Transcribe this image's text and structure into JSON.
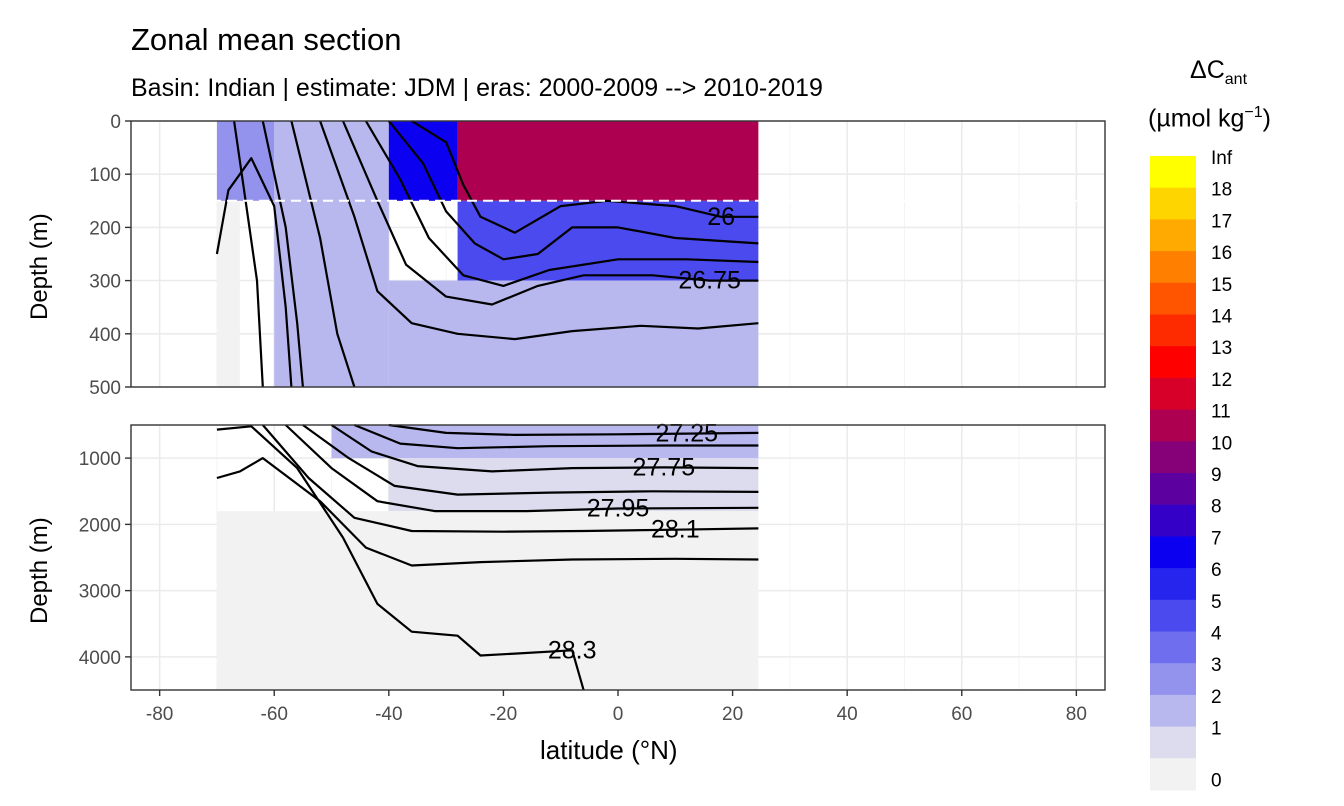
{
  "title": "Zonal mean section",
  "subtitle": "Basin: Indian | estimate: JDM  | eras: 2000-2009 --> 2010-2019",
  "chart_data": {
    "type": "heatmap",
    "subtype": "filled contour section with isopycnal contour lines",
    "xlabel": "latitude (°N)",
    "ylabel": "Depth (m)",
    "xlim": [
      -85,
      85
    ],
    "x_ticks": [
      "-80",
      "-60",
      "-40",
      "-20",
      "0",
      "20",
      "40",
      "60",
      "80"
    ],
    "panels": [
      {
        "name": "upper",
        "ylim": [
          0,
          500
        ],
        "y_reversed": true,
        "y_ticks": [
          "0",
          "100",
          "200",
          "300",
          "400",
          "500"
        ],
        "reference_line_depth": 150
      },
      {
        "name": "lower",
        "ylim": [
          500,
          4500
        ],
        "y_reversed": true,
        "y_ticks": [
          "1000",
          "2000",
          "3000",
          "4000"
        ]
      }
    ],
    "data_extent_lat": [
      -70,
      24.5
    ],
    "legend": {
      "title_main": "ΔC",
      "title_sub": "ant",
      "title_unit": "(µmol kg",
      "title_unit_sup": "−1",
      "title_unit_close": ")",
      "labels": [
        "Inf",
        "18",
        "17",
        "16",
        "15",
        "14",
        "13",
        "12",
        "11",
        "10",
        "9",
        "8",
        "7",
        "6",
        "5",
        "4",
        "3",
        "2",
        "1",
        "0"
      ],
      "colors": [
        "#FFFF00",
        "#FFD500",
        "#FFAA00",
        "#FF8000",
        "#FF5500",
        "#FF2B00",
        "#FF0000",
        "#D70028",
        "#AE0050",
        "#860078",
        "#5D00A0",
        "#3400C8",
        "#0C00F0",
        "#2525EE",
        "#4A4AEE",
        "#6E6EEE",
        "#9393EE",
        "#B8B8EE",
        "#DCDCEE",
        "#F2F2F2"
      ]
    },
    "contour_labels": [
      "26",
      "26.75",
      "27.25",
      "27.75",
      "27.95",
      "28.1",
      "28.3"
    ],
    "fields": {
      "upper": [
        {
          "lat": [
            -70,
            -66
          ],
          "depth": [
            0,
            500
          ],
          "value": 0.5
        },
        {
          "lat": [
            -70,
            -60
          ],
          "depth": [
            0,
            150
          ],
          "value": 3.5
        },
        {
          "lat": [
            -60,
            -40
          ],
          "depth": [
            0,
            500
          ],
          "value": 2.5
        },
        {
          "lat": [
            -40,
            -28
          ],
          "depth": [
            0,
            150
          ],
          "value": 7.5
        },
        {
          "lat": [
            -28,
            24.5
          ],
          "depth": [
            0,
            150
          ],
          "value": 11.5
        },
        {
          "lat": [
            -28,
            24.5
          ],
          "depth": [
            150,
            300
          ],
          "value": 5.5
        },
        {
          "lat": [
            -40,
            24.5
          ],
          "depth": [
            300,
            500
          ],
          "value": 2.5
        }
      ],
      "lower": [
        {
          "lat": [
            -50,
            24.5
          ],
          "depth": [
            500,
            1000
          ],
          "value": 2.5
        },
        {
          "lat": [
            -40,
            24.5
          ],
          "depth": [
            1000,
            1800
          ],
          "value": 1.5
        },
        {
          "lat": [
            -70,
            24.5
          ],
          "depth": [
            1800,
            4500
          ],
          "value": 0.5
        }
      ]
    },
    "contours": {
      "upper": [
        {
          "value": "26",
          "points": [
            [
              -36,
              0
            ],
            [
              -30,
              40
            ],
            [
              -27,
              120
            ],
            [
              -24,
              180
            ],
            [
              -18,
              210
            ],
            [
              -10,
              160
            ],
            [
              -2,
              150
            ],
            [
              10,
              160
            ],
            [
              18,
              180
            ],
            [
              24.5,
              180
            ]
          ]
        },
        {
          "value": "",
          "points": [
            [
              -40,
              0
            ],
            [
              -34,
              80
            ],
            [
              -30,
              170
            ],
            [
              -25,
              230
            ],
            [
              -20,
              260
            ],
            [
              -14,
              250
            ],
            [
              -8,
              200
            ],
            [
              0,
              200
            ],
            [
              10,
              220
            ],
            [
              24.5,
              230
            ]
          ]
        },
        {
          "value": "",
          "points": [
            [
              -44,
              0
            ],
            [
              -38,
              110
            ],
            [
              -33,
              220
            ],
            [
              -27,
              290
            ],
            [
              -20,
              310
            ],
            [
              -12,
              280
            ],
            [
              0,
              260
            ],
            [
              12,
              260
            ],
            [
              24.5,
              265
            ]
          ]
        },
        {
          "value": "26.75",
          "points": [
            [
              -48,
              0
            ],
            [
              -42,
              150
            ],
            [
              -37,
              270
            ],
            [
              -30,
              330
            ],
            [
              -22,
              345
            ],
            [
              -14,
              310
            ],
            [
              -6,
              290
            ],
            [
              6,
              290
            ],
            [
              16,
              300
            ],
            [
              24.5,
              300
            ]
          ]
        },
        {
          "value": "",
          "points": [
            [
              -52,
              0
            ],
            [
              -46,
              180
            ],
            [
              -42,
              320
            ],
            [
              -36,
              380
            ],
            [
              -28,
              400
            ],
            [
              -18,
              410
            ],
            [
              -8,
              395
            ],
            [
              4,
              385
            ],
            [
              14,
              390
            ],
            [
              24.5,
              380
            ]
          ]
        },
        {
          "value": "",
          "points": [
            [
              -57,
              0
            ],
            [
              -52,
              220
            ],
            [
              -49,
              400
            ],
            [
              -46,
              500
            ]
          ]
        },
        {
          "value": "",
          "points": [
            [
              -62,
              0
            ],
            [
              -58,
              200
            ],
            [
              -56,
              380
            ],
            [
              -55,
              500
            ]
          ]
        },
        {
          "value": "",
          "points": [
            [
              -67,
              0
            ],
            [
              -65,
              150
            ],
            [
              -63,
              300
            ],
            [
              -62,
              500
            ]
          ]
        },
        {
          "value": "",
          "points": [
            [
              -70,
              250
            ],
            [
              -68,
              130
            ],
            [
              -64,
              70
            ],
            [
              -60,
              160
            ],
            [
              -58,
              350
            ],
            [
              -57,
              500
            ]
          ]
        }
      ],
      "lower": [
        {
          "value": "27.25",
          "points": [
            [
              -40,
              500
            ],
            [
              -30,
              620
            ],
            [
              -18,
              650
            ],
            [
              0,
              640
            ],
            [
              12,
              630
            ],
            [
              24.5,
              620
            ]
          ]
        },
        {
          "value": "",
          "points": [
            [
              -46,
              500
            ],
            [
              -38,
              780
            ],
            [
              -28,
              850
            ],
            [
              -12,
              820
            ],
            [
              8,
              810
            ],
            [
              24.5,
              810
            ]
          ]
        },
        {
          "value": "27.75",
          "points": [
            [
              -50,
              500
            ],
            [
              -43,
              900
            ],
            [
              -35,
              1120
            ],
            [
              -22,
              1200
            ],
            [
              -8,
              1150
            ],
            [
              8,
              1140
            ],
            [
              24.5,
              1150
            ]
          ]
        },
        {
          "value": "",
          "points": [
            [
              -55,
              500
            ],
            [
              -47,
              1000
            ],
            [
              -39,
              1420
            ],
            [
              -28,
              1550
            ],
            [
              -12,
              1520
            ],
            [
              6,
              1500
            ],
            [
              24.5,
              1510
            ]
          ]
        },
        {
          "value": "27.95",
          "points": [
            [
              -58,
              500
            ],
            [
              -50,
              1150
            ],
            [
              -42,
              1650
            ],
            [
              -32,
              1800
            ],
            [
              -16,
              1800
            ],
            [
              0,
              1760
            ],
            [
              24.5,
              1750
            ]
          ]
        },
        {
          "value": "28.1",
          "points": [
            [
              -62,
              500
            ],
            [
              -54,
              1300
            ],
            [
              -46,
              1900
            ],
            [
              -36,
              2100
            ],
            [
              -20,
              2110
            ],
            [
              -6,
              2100
            ],
            [
              10,
              2080
            ],
            [
              24.5,
              2060
            ]
          ]
        },
        {
          "value": "",
          "points": [
            [
              -70,
              1300
            ],
            [
              -66,
              1200
            ],
            [
              -62,
              1000
            ],
            [
              -52,
              1650
            ],
            [
              -44,
              2350
            ],
            [
              -36,
              2620
            ],
            [
              -24,
              2570
            ],
            [
              -8,
              2530
            ],
            [
              10,
              2520
            ],
            [
              24.5,
              2530
            ]
          ]
        },
        {
          "value": "28.3",
          "points": [
            [
              -70,
              570
            ],
            [
              -64,
              520
            ],
            [
              -56,
              1150
            ],
            [
              -48,
              2200
            ],
            [
              -42,
              3200
            ],
            [
              -36,
              3620
            ],
            [
              -28,
              3680
            ],
            [
              -24,
              3980
            ],
            [
              -18,
              3950
            ],
            [
              -8,
              3900
            ],
            [
              -6,
              4500
            ]
          ]
        }
      ]
    }
  }
}
